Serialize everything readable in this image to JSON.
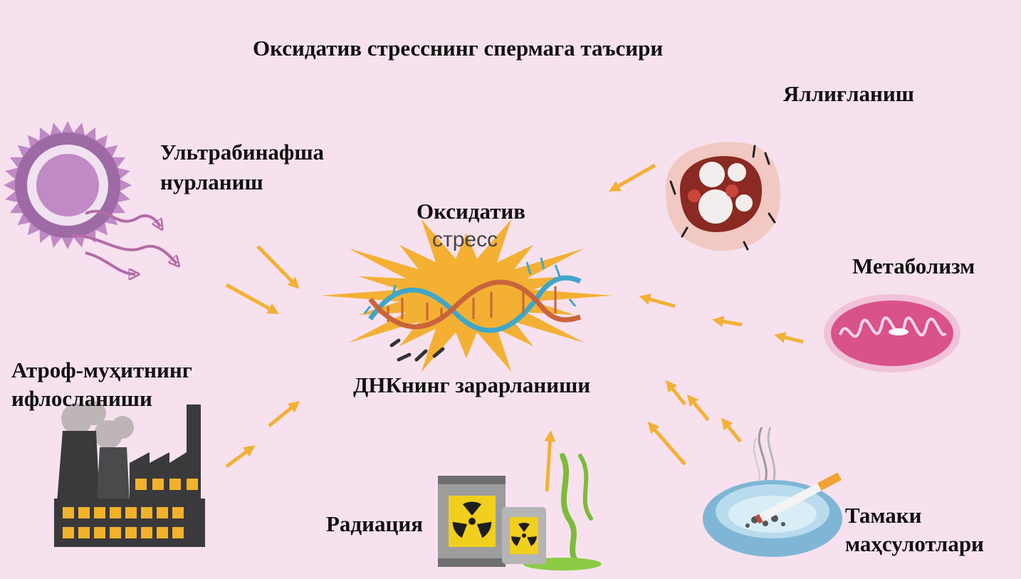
{
  "title": "Оксидатив стресснинг спермага таъсири",
  "center": {
    "line1": "Оксидатив",
    "line2": "стресс",
    "caption": "ДНКнинг зарарланиши"
  },
  "sources": {
    "uv": {
      "line1": "Ультрабинафша",
      "line2": "нурланиш",
      "icon": "sun-rays-icon"
    },
    "pollution": {
      "line1": "Атроф-муҳитнинг",
      "line2": "ифлосланиши",
      "icon": "factory-icon"
    },
    "radiation": {
      "label": "Радиация",
      "icon": "radioactive-barrel-icon"
    },
    "inflammation": {
      "label": "Яллиғланиш",
      "icon": "inflamed-tissue-icon"
    },
    "metabolism": {
      "label": "Метаболизм",
      "icon": "mitochondrion-icon"
    },
    "tobacco": {
      "line1": "Тамаки",
      "line2": "маҳсулотлари",
      "icon": "ashtray-cigarette-icon"
    }
  },
  "colors": {
    "background": "#f7e1ee",
    "arrow": "#f2b134",
    "burst": "#f3b033",
    "sun": "#c08ac4",
    "mitochondrion": "#d9528a"
  }
}
